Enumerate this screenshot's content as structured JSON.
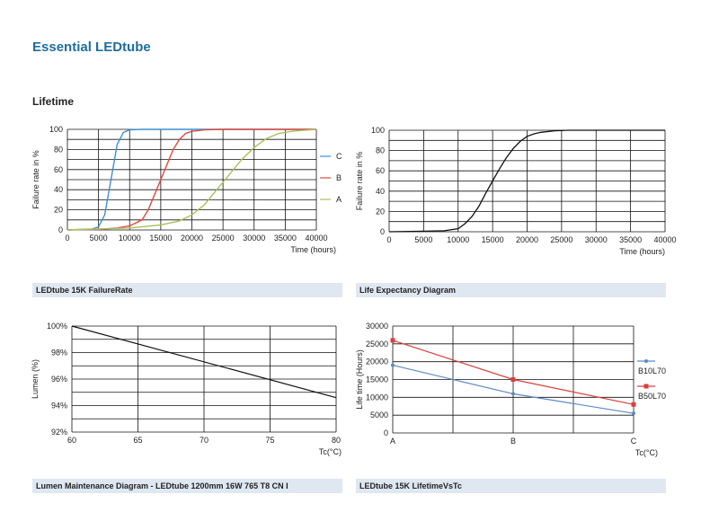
{
  "page_title": "Essential LEDtube",
  "section_title": "Lifetime",
  "captions": {
    "c1": "LEDtube 15K FailureRate",
    "c2": "Life Expectancy Diagram",
    "c3": "Lumen Maintenance Diagram - LEDtube 1200mm 16W 765 T8 CN I",
    "c4": "LEDtube 15K LifetimeVsTc"
  },
  "colors": {
    "title": "#1f6e9c",
    "caption_bg": "#dfe7f1",
    "series_A": "#a8c05a",
    "series_B": "#e0493d",
    "series_C": "#3b8fd4",
    "blue_line": "#5b8ac6",
    "red_line": "#d9403a"
  },
  "chart_data": [
    {
      "type": "line",
      "ylabel": "Failure rate in %",
      "xlabel": "Time (hours)",
      "xlim": [
        0,
        40000
      ],
      "ylim": [
        0,
        100
      ],
      "x_ticks": [
        "0",
        "5000",
        "10000",
        "15000",
        "20000",
        "25000",
        "30000",
        "35000",
        "40000"
      ],
      "y_ticks": [
        "0",
        "20",
        "40",
        "60",
        "80",
        "100"
      ],
      "grid": true,
      "legend": "right",
      "series": [
        {
          "name": "C",
          "x": [
            0,
            2000,
            4000,
            5000,
            6000,
            7000,
            8000,
            9000,
            10000,
            12000,
            15000,
            20000,
            25000,
            30000,
            40000
          ],
          "values": [
            0,
            0.5,
            1,
            3,
            15,
            50,
            85,
            97,
            99.5,
            100,
            100,
            100,
            100,
            100,
            100
          ]
        },
        {
          "name": "B",
          "x": [
            0,
            5000,
            8000,
            10000,
            12000,
            13000,
            14000,
            15000,
            16000,
            17000,
            18000,
            19000,
            20000,
            22000,
            25000,
            30000,
            40000
          ],
          "values": [
            0,
            0.5,
            2,
            4,
            10,
            20,
            35,
            50,
            65,
            80,
            90,
            96,
            98,
            99.5,
            100,
            100,
            100
          ]
        },
        {
          "name": "A",
          "x": [
            0,
            5000,
            10000,
            15000,
            18000,
            20000,
            22000,
            24000,
            26000,
            28000,
            30000,
            32000,
            34000,
            36000,
            38000,
            40000
          ],
          "values": [
            0,
            1,
            2,
            5,
            9,
            15,
            25,
            40,
            55,
            70,
            82,
            91,
            96,
            98,
            99,
            100
          ]
        }
      ]
    },
    {
      "type": "line",
      "ylabel": "Failure rate in %",
      "xlabel": "Time (hours)",
      "xlim": [
        0,
        40000
      ],
      "ylim": [
        0,
        100
      ],
      "x_ticks": [
        "0",
        "5000",
        "10000",
        "15000",
        "20000",
        "25000",
        "30000",
        "35000",
        "40000"
      ],
      "y_ticks": [
        "0",
        "20",
        "40",
        "60",
        "80",
        "100"
      ],
      "grid": true,
      "series": [
        {
          "x": [
            0,
            5000,
            8000,
            10000,
            11000,
            12000,
            13000,
            14000,
            15000,
            16000,
            17000,
            18000,
            19000,
            20000,
            21000,
            22000,
            24000,
            26000,
            30000,
            40000
          ],
          "values": [
            0,
            0.5,
            1,
            3,
            8,
            15,
            25,
            38,
            50,
            62,
            73,
            82,
            89,
            94,
            96.5,
            98,
            99.5,
            100,
            100,
            100
          ]
        }
      ]
    },
    {
      "type": "line",
      "ylabel": "Lumen (%)",
      "xlabel": "Tc(°C)",
      "xlim": [
        60,
        80
      ],
      "ylim": [
        92,
        100
      ],
      "x_ticks": [
        "60",
        "65",
        "70",
        "75",
        "80"
      ],
      "y_ticks": [
        "92%",
        "94%",
        "96%",
        "98%",
        "100%"
      ],
      "grid": true,
      "series": [
        {
          "x": [
            60,
            80
          ],
          "values": [
            100,
            94.6
          ]
        }
      ]
    },
    {
      "type": "line",
      "ylabel": "Life time (Hours)",
      "xlabel": "Tc(°C)",
      "categories": [
        "A",
        "B",
        "C"
      ],
      "ylim": [
        0,
        30000
      ],
      "y_ticks": [
        "0",
        "5000",
        "10000",
        "15000",
        "20000",
        "25000",
        "30000"
      ],
      "grid": true,
      "legend": "right",
      "series": [
        {
          "name": "B10L70",
          "values": [
            19000,
            11000,
            5500
          ]
        },
        {
          "name": "B50L70",
          "values": [
            26000,
            15000,
            8000
          ]
        }
      ]
    }
  ]
}
